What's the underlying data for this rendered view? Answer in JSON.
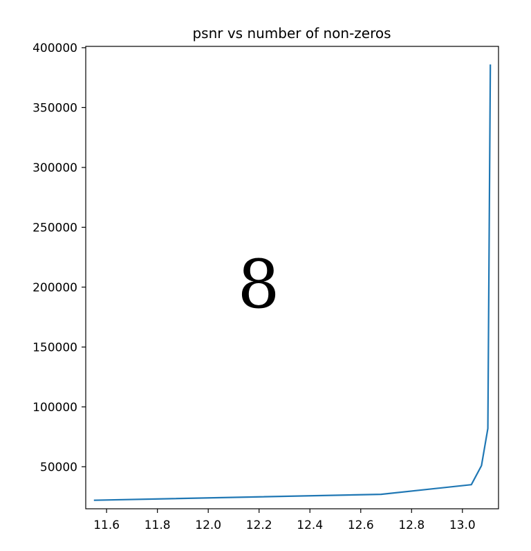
{
  "chart_data": {
    "type": "line",
    "title": "psnr vs number of non-zeros",
    "xlabel": "",
    "ylabel": "",
    "xlim": [
      11.518,
      13.142
    ],
    "ylim": [
      14900,
      401100
    ],
    "x_ticks": [
      11.6,
      11.8,
      12.0,
      12.2,
      12.4,
      12.6,
      12.8,
      13.0
    ],
    "x_tick_labels": [
      "11.6",
      "11.8",
      "12.0",
      "12.2",
      "12.4",
      "12.6",
      "12.8",
      "13.0"
    ],
    "y_ticks": [
      50000,
      100000,
      150000,
      200000,
      250000,
      300000,
      350000,
      400000
    ],
    "y_tick_labels": [
      "50000",
      "100000",
      "150000",
      "200000",
      "250000",
      "300000",
      "350000",
      "400000"
    ],
    "grid": false,
    "series": [
      {
        "color": "#1f77b4",
        "x": [
          11.55,
          12.68,
          13.035,
          13.075,
          13.1,
          13.11
        ],
        "y": [
          22000,
          27000,
          35000,
          51000,
          82000,
          386000
        ]
      }
    ]
  },
  "overlay_label": "8"
}
